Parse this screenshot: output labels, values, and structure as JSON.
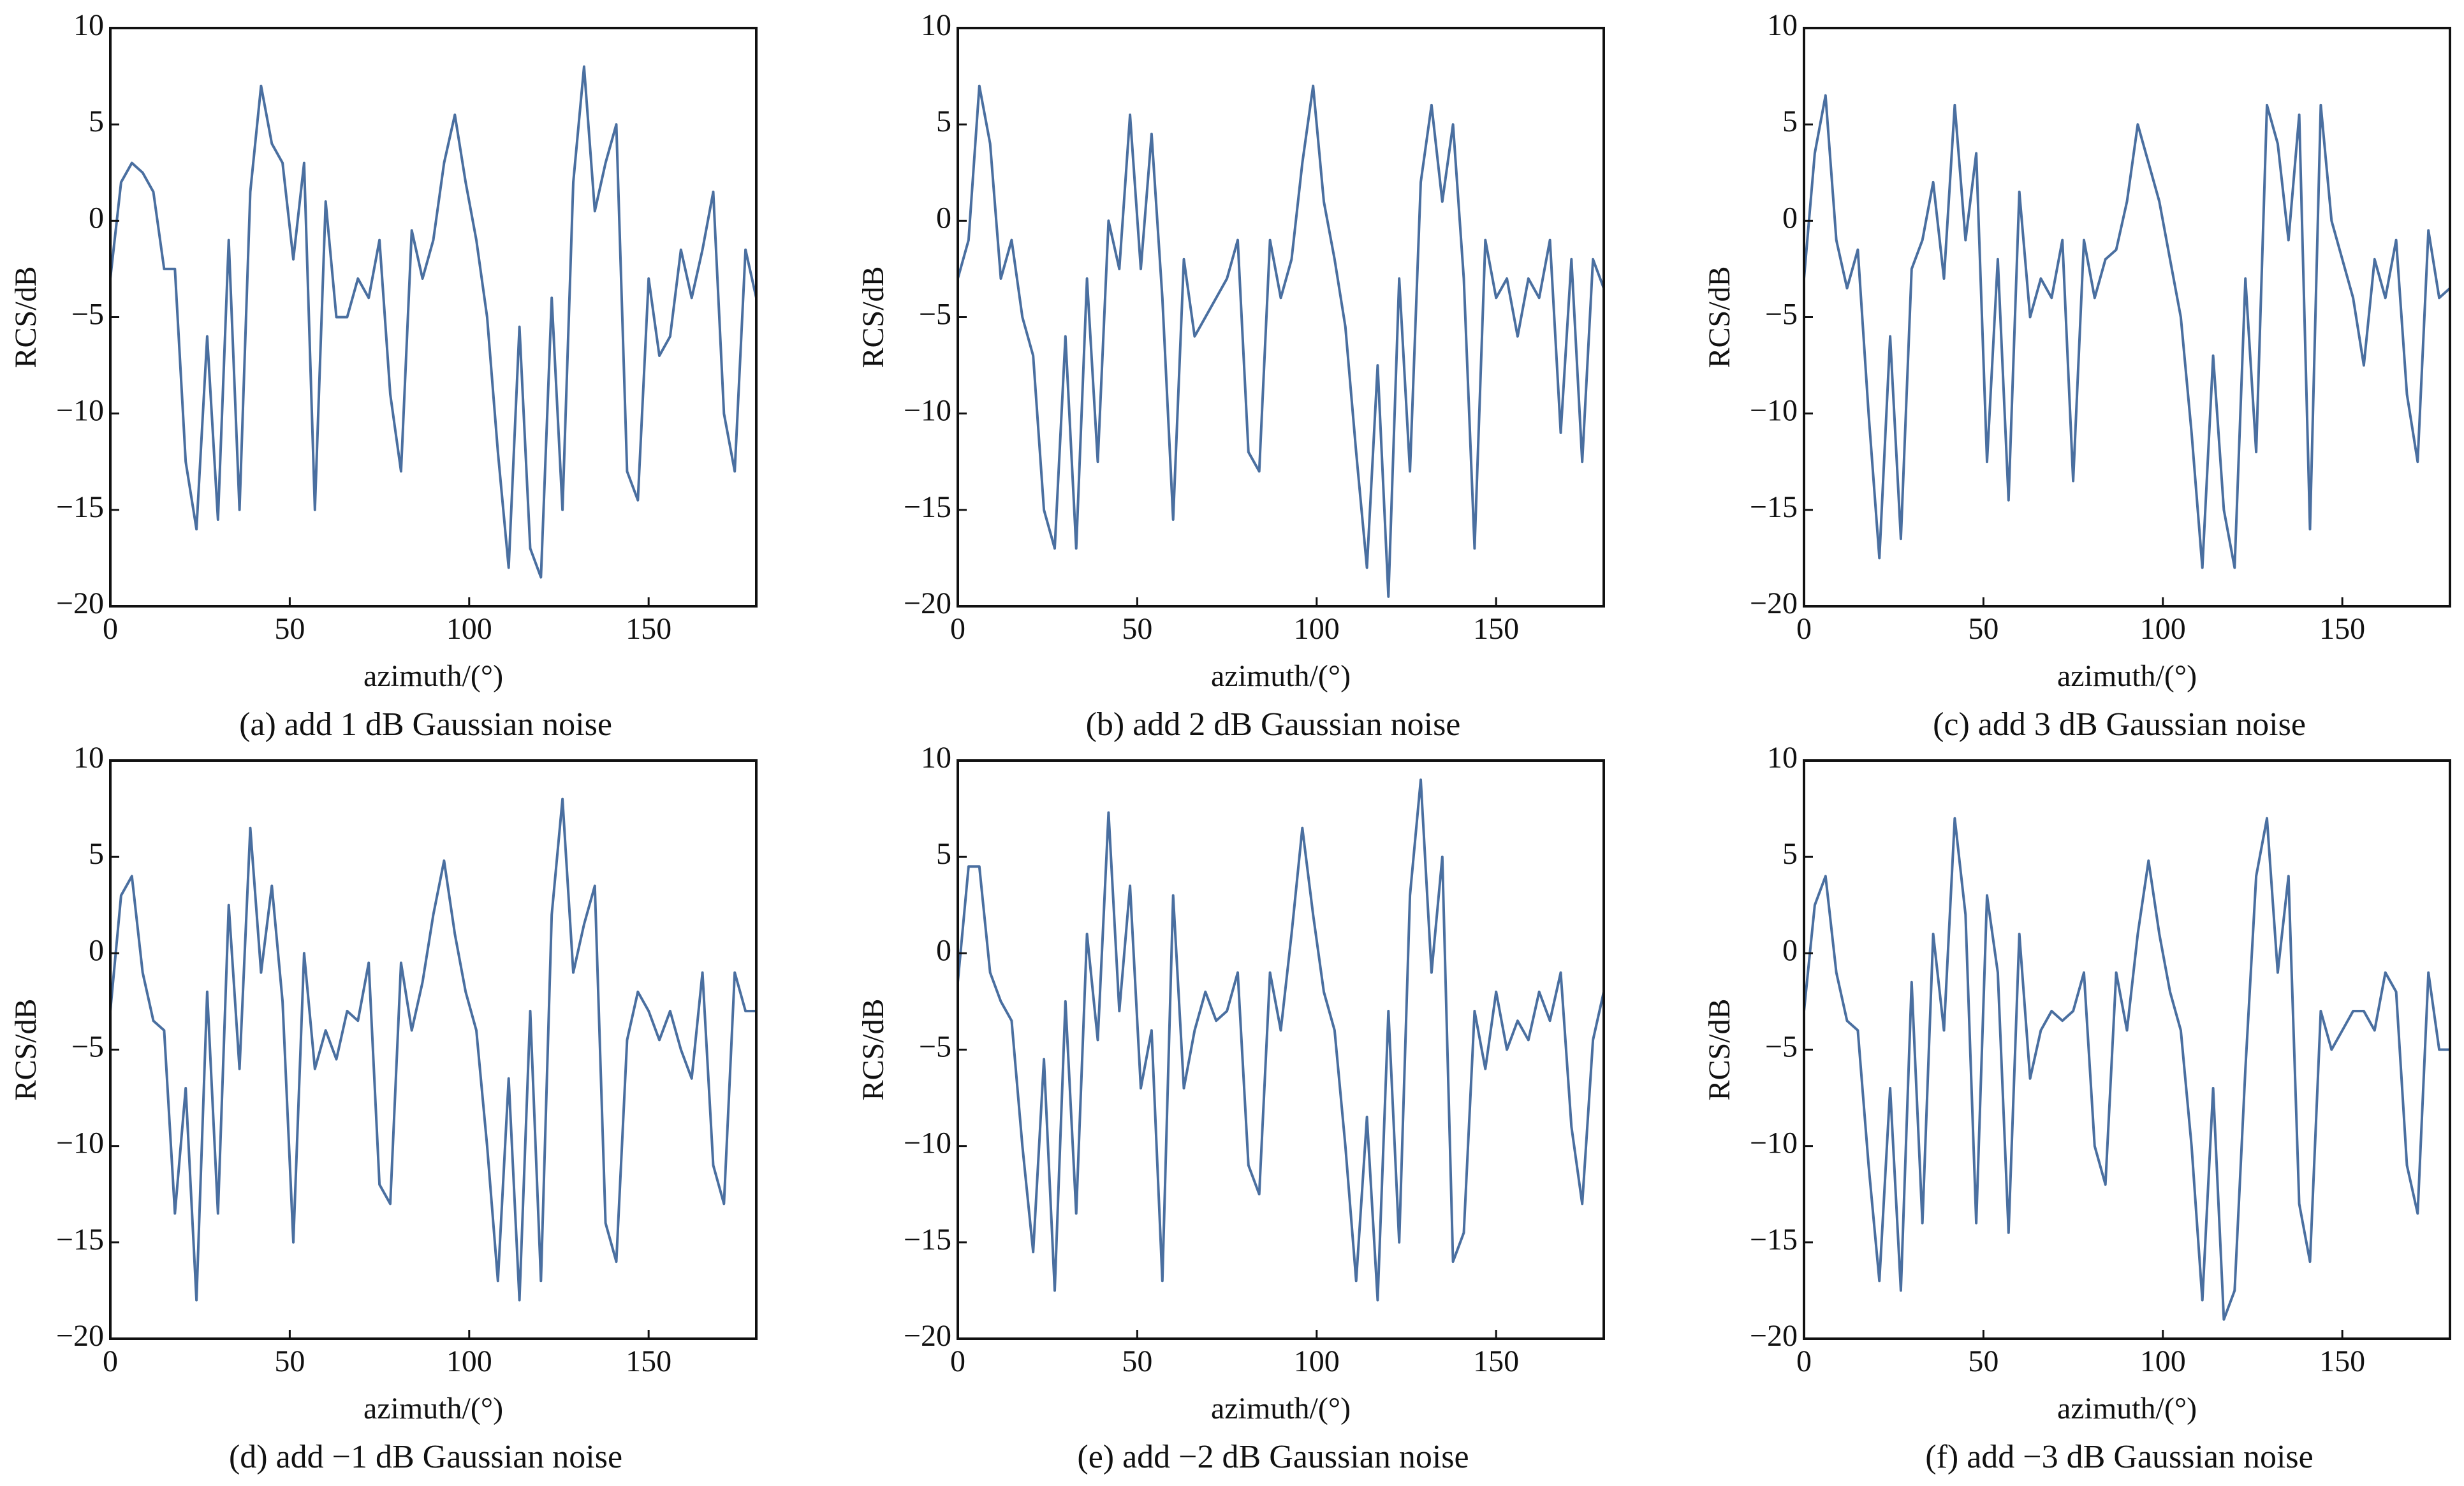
{
  "chart_data": [
    {
      "type": "line",
      "caption": "(a) add 1 dB Gaussian noise",
      "xlabel": "azimuth/(°)",
      "ylabel": "RCS/dB",
      "color": "#4a6fa0",
      "xlim": [
        0,
        180
      ],
      "ylim": [
        -20,
        10
      ],
      "xticks": [
        0,
        50,
        100,
        150
      ],
      "yticks": [
        {
          "value": -20,
          "label": "−20"
        },
        {
          "value": -15,
          "label": "−15"
        },
        {
          "value": -10,
          "label": "−10"
        },
        {
          "value": -5,
          "label": "−5"
        },
        0,
        5,
        10
      ],
      "x": [
        0,
        3,
        6,
        9,
        12,
        15,
        18,
        21,
        24,
        27,
        30,
        33,
        36,
        39,
        42,
        45,
        48,
        51,
        54,
        57,
        60,
        63,
        66,
        69,
        72,
        75,
        78,
        81,
        84,
        87,
        90,
        93,
        96,
        99,
        102,
        105,
        108,
        111,
        114,
        117,
        120,
        123,
        126,
        129,
        132,
        135,
        138,
        141,
        144,
        147,
        150,
        153,
        156,
        159,
        162,
        165,
        168,
        171,
        174,
        177,
        180
      ],
      "values": [
        -3,
        2,
        3,
        2.5,
        1.5,
        -2.5,
        -2.5,
        -12.5,
        -16,
        -6,
        -15.5,
        -1,
        -15,
        1.5,
        7,
        4,
        3,
        -2,
        3,
        -15,
        1,
        -5,
        -5,
        -3,
        -4,
        -1,
        -9,
        -13,
        -0.5,
        -3,
        -1,
        3,
        5.5,
        2,
        -1,
        -5,
        -12,
        -18,
        -5.5,
        -17,
        -18.5,
        -4,
        -15,
        2,
        8,
        0.5,
        3,
        5,
        -13,
        -14.5,
        -3,
        -7,
        -6,
        -1.5,
        -4,
        -1.5,
        1.5,
        -10,
        -13,
        -1.5,
        -4
      ]
    },
    {
      "type": "line",
      "caption": "(b) add 2 dB Gaussian noise",
      "xlabel": "azimuth/(°)",
      "ylabel": "RCS/dB",
      "color": "#4a6fa0",
      "xlim": [
        0,
        180
      ],
      "ylim": [
        -20,
        10
      ],
      "xticks": [
        0,
        50,
        100,
        150
      ],
      "yticks": [
        {
          "value": -20,
          "label": "−20"
        },
        {
          "value": -15,
          "label": "−15"
        },
        {
          "value": -10,
          "label": "−10"
        },
        {
          "value": -5,
          "label": "−5"
        },
        0,
        5,
        10
      ],
      "x": [
        0,
        3,
        6,
        9,
        12,
        15,
        18,
        21,
        24,
        27,
        30,
        33,
        36,
        39,
        42,
        45,
        48,
        51,
        54,
        57,
        60,
        63,
        66,
        69,
        72,
        75,
        78,
        81,
        84,
        87,
        90,
        93,
        96,
        99,
        102,
        105,
        108,
        111,
        114,
        117,
        120,
        123,
        126,
        129,
        132,
        135,
        138,
        141,
        144,
        147,
        150,
        153,
        156,
        159,
        162,
        165,
        168,
        171,
        174,
        177,
        180
      ],
      "values": [
        -3,
        -1,
        7,
        4,
        -3,
        -1,
        -5,
        -7,
        -15,
        -17,
        -6,
        -17,
        -3,
        -12.5,
        0,
        -2.5,
        5.5,
        -2.5,
        4.5,
        -4,
        -15.5,
        -2,
        -6,
        -5,
        -4,
        -3,
        -1,
        -12,
        -13,
        -1,
        -4,
        -2,
        3,
        7,
        1,
        -2,
        -5.5,
        -12,
        -18,
        -7.5,
        -19.5,
        -3,
        -13,
        2,
        6,
        1,
        5,
        -3,
        -17,
        -1,
        -4,
        -3,
        -6,
        -3,
        -4,
        -1,
        -11,
        -2,
        -12.5,
        -2,
        -3.5
      ]
    },
    {
      "type": "line",
      "caption": "(c) add 3 dB Gaussian noise",
      "xlabel": "azimuth/(°)",
      "ylabel": "RCS/dB",
      "color": "#4a6fa0",
      "xlim": [
        0,
        180
      ],
      "ylim": [
        -20,
        10
      ],
      "xticks": [
        0,
        50,
        100,
        150
      ],
      "yticks": [
        {
          "value": -20,
          "label": "−20"
        },
        {
          "value": -15,
          "label": "−15"
        },
        {
          "value": -10,
          "label": "−10"
        },
        {
          "value": -5,
          "label": "−5"
        },
        0,
        5,
        10
      ],
      "x": [
        0,
        3,
        6,
        9,
        12,
        15,
        18,
        21,
        24,
        27,
        30,
        33,
        36,
        39,
        42,
        45,
        48,
        51,
        54,
        57,
        60,
        63,
        66,
        69,
        72,
        75,
        78,
        81,
        84,
        87,
        90,
        93,
        96,
        99,
        102,
        105,
        108,
        111,
        114,
        117,
        120,
        123,
        126,
        129,
        132,
        135,
        138,
        141,
        144,
        147,
        150,
        153,
        156,
        159,
        162,
        165,
        168,
        171,
        174,
        177,
        180
      ],
      "values": [
        -3,
        3.5,
        6.5,
        -1,
        -3.5,
        -1.5,
        -10,
        -17.5,
        -6,
        -16.5,
        -2.5,
        -1,
        2,
        -3,
        6,
        -1,
        3.5,
        -12.5,
        -2,
        -14.5,
        1.5,
        -5,
        -3,
        -4,
        -1,
        -13.5,
        -1,
        -4,
        -2,
        -1.5,
        1,
        5,
        3,
        1,
        -2,
        -5,
        -11,
        -18,
        -7,
        -15,
        -18,
        -3,
        -12,
        6,
        4,
        -1,
        5.5,
        -16,
        6,
        0,
        -2,
        -4,
        -7.5,
        -2,
        -4,
        -1,
        -9,
        -12.5,
        -0.5,
        -4,
        -3.5
      ]
    },
    {
      "type": "line",
      "caption": "(d) add −1 dB Gaussian noise",
      "xlabel": "azimuth/(°)",
      "ylabel": "RCS/dB",
      "color": "#4a6fa0",
      "xlim": [
        0,
        180
      ],
      "ylim": [
        -20,
        10
      ],
      "xticks": [
        0,
        50,
        100,
        150
      ],
      "yticks": [
        {
          "value": -20,
          "label": "−20"
        },
        {
          "value": -15,
          "label": "−15"
        },
        {
          "value": -10,
          "label": "−10"
        },
        {
          "value": -5,
          "label": "−5"
        },
        0,
        5,
        10
      ],
      "x": [
        0,
        3,
        6,
        9,
        12,
        15,
        18,
        21,
        24,
        27,
        30,
        33,
        36,
        39,
        42,
        45,
        48,
        51,
        54,
        57,
        60,
        63,
        66,
        69,
        72,
        75,
        78,
        81,
        84,
        87,
        90,
        93,
        96,
        99,
        102,
        105,
        108,
        111,
        114,
        117,
        120,
        123,
        126,
        129,
        132,
        135,
        138,
        141,
        144,
        147,
        150,
        153,
        156,
        159,
        162,
        165,
        168,
        171,
        174,
        177,
        180
      ],
      "values": [
        -3,
        3,
        4,
        -1,
        -3.5,
        -4,
        -13.5,
        -7,
        -18,
        -2,
        -13.5,
        2.5,
        -6,
        6.5,
        -1,
        3.5,
        -2.5,
        -15,
        0,
        -6,
        -4,
        -5.5,
        -3,
        -3.5,
        -0.5,
        -12,
        -13,
        -0.5,
        -4,
        -1.5,
        2,
        4.8,
        1,
        -2,
        -4,
        -10,
        -17,
        -6.5,
        -18,
        -3,
        -17,
        2,
        8,
        -1,
        1.5,
        3.5,
        -14,
        -16,
        -4.5,
        -2,
        -3,
        -4.5,
        -3,
        -5,
        -6.5,
        -1,
        -11,
        -13,
        -1,
        -3,
        -3
      ]
    },
    {
      "type": "line",
      "caption": "(e) add −2 dB Gaussian noise",
      "xlabel": "azimuth/(°)",
      "ylabel": "RCS/dB",
      "color": "#4a6fa0",
      "xlim": [
        0,
        180
      ],
      "ylim": [
        -20,
        10
      ],
      "xticks": [
        0,
        50,
        100,
        150
      ],
      "yticks": [
        {
          "value": -20,
          "label": "−20"
        },
        {
          "value": -15,
          "label": "−15"
        },
        {
          "value": -10,
          "label": "−10"
        },
        {
          "value": -5,
          "label": "−5"
        },
        0,
        5,
        10
      ],
      "x": [
        0,
        3,
        6,
        9,
        12,
        15,
        18,
        21,
        24,
        27,
        30,
        33,
        36,
        39,
        42,
        45,
        48,
        51,
        54,
        57,
        60,
        63,
        66,
        69,
        72,
        75,
        78,
        81,
        84,
        87,
        90,
        93,
        96,
        99,
        102,
        105,
        108,
        111,
        114,
        117,
        120,
        123,
        126,
        129,
        132,
        135,
        138,
        141,
        144,
        147,
        150,
        153,
        156,
        159,
        162,
        165,
        168,
        171,
        174,
        177,
        180
      ],
      "values": [
        -1.5,
        4.5,
        4.5,
        -1,
        -2.5,
        -3.5,
        -10,
        -15.5,
        -5.5,
        -17.5,
        -2.5,
        -13.5,
        1,
        -4.5,
        7.3,
        -3,
        3.5,
        -7,
        -4,
        -17,
        3,
        -7,
        -4,
        -2,
        -3.5,
        -3,
        -1,
        -11,
        -12.5,
        -1,
        -4,
        1,
        6.5,
        2,
        -2,
        -4,
        -10,
        -17,
        -8.5,
        -18,
        -3,
        -15,
        3,
        9,
        -1,
        5,
        -16,
        -14.5,
        -3,
        -6,
        -2,
        -5,
        -3.5,
        -4.5,
        -2,
        -3.5,
        -1,
        -9,
        -13,
        -4.5,
        -2
      ]
    },
    {
      "type": "line",
      "caption": "(f) add −3 dB Gaussian noise",
      "xlabel": "azimuth/(°)",
      "ylabel": "RCS/dB",
      "color": "#4a6fa0",
      "xlim": [
        0,
        180
      ],
      "ylim": [
        -20,
        10
      ],
      "xticks": [
        0,
        50,
        100,
        150
      ],
      "yticks": [
        {
          "value": -20,
          "label": "−20"
        },
        {
          "value": -15,
          "label": "−15"
        },
        {
          "value": -10,
          "label": "−10"
        },
        {
          "value": -5,
          "label": "−5"
        },
        0,
        5,
        10
      ],
      "x": [
        0,
        3,
        6,
        9,
        12,
        15,
        18,
        21,
        24,
        27,
        30,
        33,
        36,
        39,
        42,
        45,
        48,
        51,
        54,
        57,
        60,
        63,
        66,
        69,
        72,
        75,
        78,
        81,
        84,
        87,
        90,
        93,
        96,
        99,
        102,
        105,
        108,
        111,
        114,
        117,
        120,
        123,
        126,
        129,
        132,
        135,
        138,
        141,
        144,
        147,
        150,
        153,
        156,
        159,
        162,
        165,
        168,
        171,
        174,
        177,
        180
      ],
      "values": [
        -3,
        2.5,
        4,
        -1,
        -3.5,
        -4,
        -11,
        -17,
        -7,
        -17.5,
        -1.5,
        -14,
        1,
        -4,
        7,
        2,
        -14,
        3,
        -1,
        -14.5,
        1,
        -6.5,
        -4,
        -3,
        -3.5,
        -3,
        -1,
        -10,
        -12,
        -1,
        -4,
        1,
        4.8,
        1,
        -2,
        -4,
        -10,
        -18,
        -7,
        -19,
        -17.5,
        -6,
        4,
        7,
        -1,
        4,
        -13,
        -16,
        -3,
        -5,
        -4,
        -3,
        -3,
        -4,
        -1,
        -2,
        -11,
        -13.5,
        -1,
        -5,
        -5
      ]
    }
  ]
}
